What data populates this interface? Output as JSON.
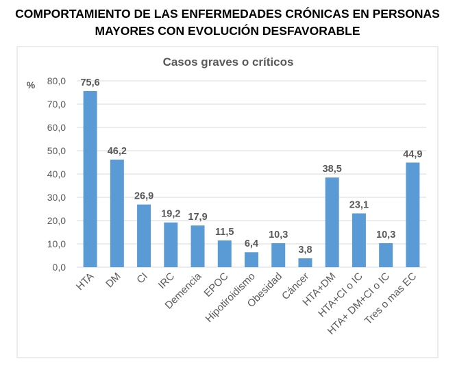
{
  "header": {
    "title_line1": "COMPORTAMIENTO DE LAS ENFERMEDADES CRÓNICAS EN PERSONAS",
    "title_line2": "MAYORES CON EVOLUCIÓN DESFAVORABLE"
  },
  "chart_data": {
    "type": "bar",
    "title": "Casos graves o críticos",
    "ylabel": "%",
    "xlabel": "",
    "ylim": [
      0,
      80
    ],
    "yticks": [
      "0,0",
      "10,0",
      "20,0",
      "30,0",
      "40,0",
      "50,0",
      "60,0",
      "70,0",
      "80,0"
    ],
    "grid": true,
    "categories": [
      "HTA",
      "DM",
      "CI",
      "IRC",
      "Demencia",
      "EPOC",
      "Hipotiroidismo",
      "Obesidad",
      "Cáncer",
      "HTA+DM",
      "HTA+CI o IC",
      "HTA+ DM+CI o IC",
      "Tres o mas EC"
    ],
    "values": [
      75.6,
      46.2,
      26.9,
      19.2,
      17.9,
      11.5,
      6.4,
      10.3,
      3.8,
      38.5,
      23.1,
      10.3,
      44.9
    ],
    "data_labels": [
      "75,6",
      "46,2",
      "26,9",
      "19,2",
      "17,9",
      "11,5",
      "6,4",
      "10,3",
      "3,8",
      "38,5",
      "23,1",
      "10,3",
      "44,9"
    ],
    "colors": {
      "bar": "#5B9BD5",
      "grid": "#D9D9D9",
      "text": "#595959"
    }
  }
}
